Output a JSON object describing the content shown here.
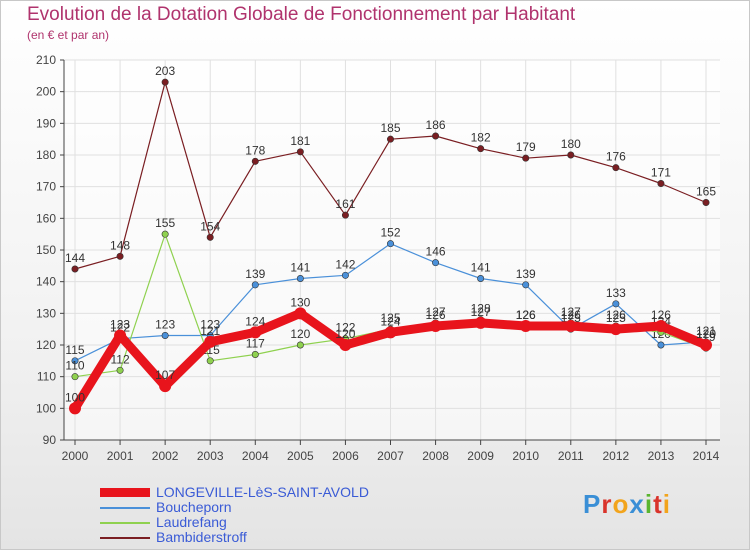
{
  "title": "Evolution de la Dotation Globale de Fonctionnement par Habitant",
  "subtitle": "(en € et par an)",
  "logo": "Proxiti",
  "logo_colors": [
    "#3a8fd6",
    "#d9342b",
    "#f2a41c",
    "#3a8fd6",
    "#5ab52f",
    "#d9342b",
    "#f2a41c"
  ],
  "chart_data": {
    "type": "line",
    "x": [
      "2000",
      "2001",
      "2002",
      "2003",
      "2004",
      "2005",
      "2006",
      "2007",
      "2008",
      "2009",
      "2010",
      "2011",
      "2012",
      "2013",
      "2014"
    ],
    "ylim": [
      90,
      210
    ],
    "yticks": [
      "90",
      "100",
      "110",
      "120",
      "130",
      "140",
      "150",
      "160",
      "170",
      "180",
      "190",
      "200",
      "210"
    ],
    "grid": true,
    "legend_position": "bottom-left",
    "series": [
      {
        "name": "Bambiderstroff",
        "color": "#7a1e22",
        "values": [
          144,
          148,
          203,
          154,
          178,
          181,
          161,
          185,
          186,
          182,
          179,
          180,
          176,
          171,
          165
        ],
        "labels": [
          "144",
          "148",
          "203",
          "154",
          "178",
          "181",
          "161",
          "185",
          "186",
          "182",
          "179",
          "180",
          "176",
          "171",
          "165"
        ]
      },
      {
        "name": "Boucheporn",
        "color": "#4a90d9",
        "values": [
          115,
          122,
          123,
          123,
          139,
          141,
          142,
          152,
          146,
          141,
          139,
          125,
          133,
          120,
          121
        ],
        "labels": [
          "115",
          "122",
          "123",
          "123",
          "139",
          "141",
          "142",
          "152",
          "146",
          "141",
          "139",
          "125",
          "133",
          "120",
          "121"
        ]
      },
      {
        "name": "Laudrefang",
        "color": "#8fd14f",
        "values": [
          110,
          112,
          155,
          115,
          117,
          120,
          122,
          125,
          127,
          128,
          126,
          127,
          126,
          124,
          119
        ],
        "labels": [
          "110",
          "112",
          "155",
          "115",
          "117",
          "120",
          "122",
          "125",
          "127",
          "128",
          "126",
          "127",
          "126",
          "124",
          "119"
        ]
      },
      {
        "name": "LONGEVILLE-LèS-SAINT-AVOLD",
        "color": "#e8141c",
        "values": [
          100,
          123,
          107,
          121,
          124,
          130,
          120,
          124,
          126,
          127,
          126,
          126,
          125,
          126,
          120
        ],
        "labels": [
          "100",
          "123",
          "107",
          "121",
          "124",
          "130",
          "120",
          "124",
          "126",
          "127",
          "126",
          "126",
          "125",
          "126",
          "120"
        ]
      }
    ],
    "legend": [
      "LONGEVILLE-LèS-SAINT-AVOLD",
      "Boucheporn",
      "Laudrefang",
      "Bambiderstroff"
    ]
  }
}
